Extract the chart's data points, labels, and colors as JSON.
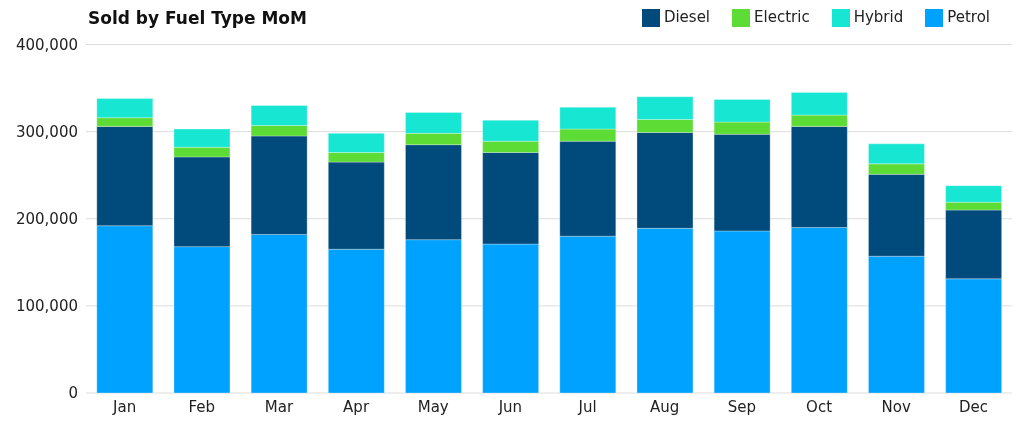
{
  "chart_data": {
    "type": "bar",
    "title": "Sold by Fuel Type MoM",
    "stacked": true,
    "categories": [
      "Jan",
      "Feb",
      "Mar",
      "Apr",
      "May",
      "Jun",
      "Jul",
      "Aug",
      "Sep",
      "Oct",
      "Nov",
      "Dec"
    ],
    "series": [
      {
        "name": "Petrol",
        "color": "#00a2ff",
        "values": [
          192000,
          168000,
          182000,
          165000,
          176000,
          171000,
          180000,
          189000,
          186000,
          190000,
          157000,
          131000
        ]
      },
      {
        "name": "Diesel",
        "color": "#004a7c",
        "values": [
          114000,
          103000,
          113000,
          100000,
          109000,
          105000,
          109000,
          110000,
          111000,
          116000,
          94000,
          79000
        ]
      },
      {
        "name": "Electric",
        "color": "#5ddc36",
        "values": [
          10000,
          11000,
          12000,
          11000,
          13000,
          13000,
          14000,
          15000,
          14000,
          13000,
          12000,
          9000
        ]
      },
      {
        "name": "Hybrid",
        "color": "#17e6d2",
        "values": [
          22000,
          21000,
          23000,
          22000,
          24000,
          24000,
          25000,
          26000,
          26000,
          26000,
          23000,
          19000
        ]
      }
    ],
    "ylim": [
      0,
      400000
    ],
    "yticks": [
      {
        "value": 0,
        "label": "0"
      },
      {
        "value": 100000,
        "label": "100,000"
      },
      {
        "value": 200000,
        "label": "200,000"
      },
      {
        "value": 300000,
        "label": "300,000"
      },
      {
        "value": 400000,
        "label": "400,000"
      }
    ],
    "grid": "y",
    "legend": "top right"
  }
}
